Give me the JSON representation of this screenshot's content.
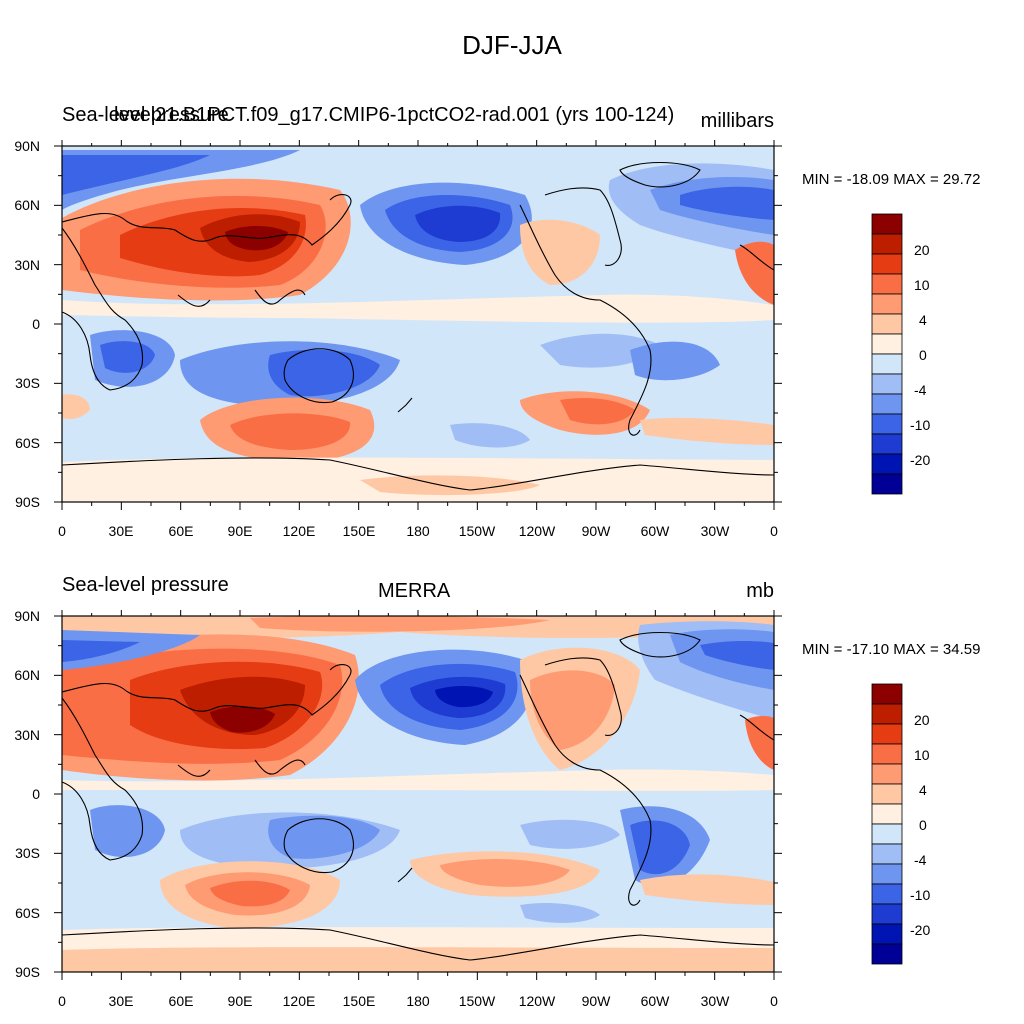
{
  "title": "DJF-JJA",
  "palette": [
    "#000096",
    "#0014b4",
    "#1e3cd2",
    "#3c64e6",
    "#6e96f0",
    "#a0bef5",
    "#d2e6fa",
    "#fff0e1",
    "#ffc8a5",
    "#ff9b73",
    "#fa6e46",
    "#e63c14",
    "#be1e00",
    "#8c0000"
  ],
  "colorbar_labels": [
    "20",
    "10",
    "4",
    "0",
    "-4",
    "-10",
    "-20"
  ],
  "lat_labels": [
    "90N",
    "60N",
    "30N",
    "0",
    "30S",
    "60S",
    "90S"
  ],
  "lon_labels": [
    "0",
    "30E",
    "60E",
    "90E",
    "120E",
    "150E",
    "180",
    "150W",
    "120W",
    "90W",
    "60W",
    "30W",
    "0"
  ],
  "panels": [
    {
      "left": "Sea-level pressure",
      "center": "level21.B1PCT.f09_g17.CMIP6-1pctCO2-rad.001 (yrs 100-124)",
      "right": "millibars",
      "stats": "MIN = -18.09 MAX =  29.72"
    },
    {
      "left": "Sea-level pressure",
      "center": "MERRA",
      "right": "mb",
      "stats": "MIN = -17.10 MAX =  34.59"
    }
  ]
}
